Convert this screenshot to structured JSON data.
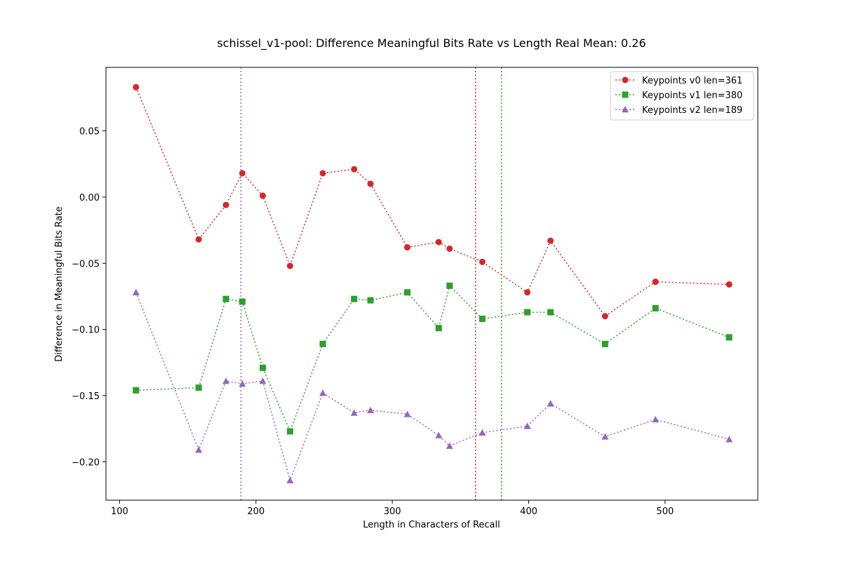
{
  "chart_data": {
    "type": "line",
    "title": "schissel_v1-pool: Difference Meaningful Bits Rate vs Length Real Mean: 0.26",
    "xlabel": "Length in Characters of Recall",
    "ylabel": "Difference in Meaningful Bits Rate",
    "xlim": [
      90,
      568
    ],
    "ylim": [
      -0.229,
      0.098
    ],
    "xticks": [
      100,
      200,
      300,
      400,
      500
    ],
    "yticks": [
      0.05,
      0.0,
      -0.05,
      -0.1,
      -0.15,
      -0.2
    ],
    "ytick_labels": [
      "0.05",
      "0.00",
      "−0.05",
      "−0.10",
      "−0.15",
      "−0.20"
    ],
    "grid": false,
    "legend_position": "top-right",
    "x": [
      112,
      158,
      178,
      190,
      205,
      225,
      249,
      272,
      284,
      311,
      334,
      342,
      366,
      399,
      416,
      456,
      493,
      547
    ],
    "series": [
      {
        "name": "Keypoints v0 len=361",
        "color": "#d62728",
        "marker": "circle",
        "keypoint_len": 361,
        "values": [
          0.083,
          -0.032,
          -0.006,
          0.018,
          0.001,
          -0.052,
          0.018,
          0.021,
          0.01,
          -0.038,
          -0.034,
          -0.039,
          -0.049,
          -0.072,
          -0.033,
          -0.09,
          -0.064,
          -0.066
        ]
      },
      {
        "name": "Keypoints v1 len=380",
        "color": "#2ca02c",
        "marker": "square",
        "keypoint_len": 380,
        "values": [
          -0.146,
          -0.144,
          -0.077,
          -0.079,
          -0.129,
          -0.177,
          -0.111,
          -0.077,
          -0.078,
          -0.072,
          -0.099,
          -0.067,
          -0.092,
          -0.087,
          -0.087,
          -0.111,
          -0.084,
          -0.106
        ]
      },
      {
        "name": "Keypoints v2 len=189",
        "color": "#9467bd",
        "marker": "triangle",
        "keypoint_len": 189,
        "values": [
          -0.072,
          -0.191,
          -0.139,
          -0.141,
          -0.139,
          -0.214,
          -0.148,
          -0.163,
          -0.161,
          -0.164,
          -0.18,
          -0.188,
          -0.178,
          -0.173,
          -0.156,
          -0.181,
          -0.168,
          -0.183
        ]
      }
    ]
  }
}
